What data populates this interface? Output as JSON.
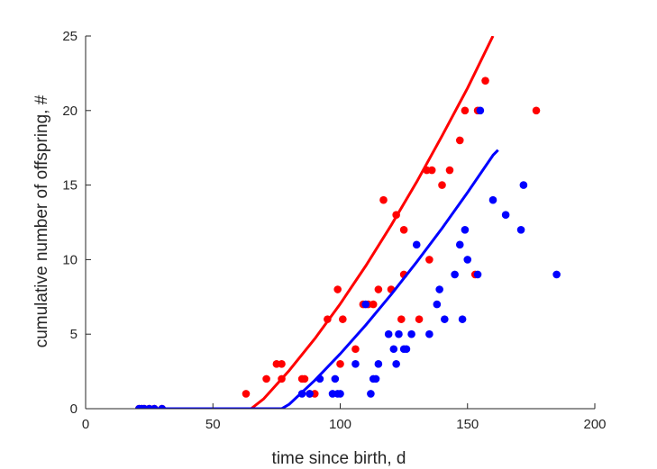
{
  "chart_data": {
    "type": "scatter",
    "title": "",
    "xlabel": "time since birth, d",
    "ylabel": "cumulative number of offspring, #",
    "xlim": [
      0,
      200
    ],
    "ylim": [
      0,
      25
    ],
    "xticks": [
      0,
      50,
      100,
      150,
      200
    ],
    "yticks": [
      0,
      5,
      10,
      15,
      20,
      25
    ],
    "grid": false,
    "box": "left-bottom axes only",
    "series": [
      {
        "color": "#ff0000",
        "points": [
          [
            21,
            0
          ],
          [
            22,
            0
          ],
          [
            23,
            0
          ],
          [
            25,
            0
          ],
          [
            27,
            0
          ],
          [
            30,
            0
          ],
          [
            63,
            1
          ],
          [
            71,
            2
          ],
          [
            75,
            3
          ],
          [
            77,
            3
          ],
          [
            77,
            2
          ],
          [
            85,
            2
          ],
          [
            86,
            2
          ],
          [
            88,
            1
          ],
          [
            90,
            1
          ],
          [
            95,
            6
          ],
          [
            99,
            8
          ],
          [
            100,
            3
          ],
          [
            101,
            6
          ],
          [
            106,
            4
          ],
          [
            109,
            7
          ],
          [
            111,
            7
          ],
          [
            113,
            7
          ],
          [
            115,
            8
          ],
          [
            117,
            14
          ],
          [
            120,
            8
          ],
          [
            122,
            13
          ],
          [
            124,
            6
          ],
          [
            125,
            12
          ],
          [
            125,
            9
          ],
          [
            131,
            6
          ],
          [
            134,
            16
          ],
          [
            135,
            10
          ],
          [
            136,
            16
          ],
          [
            140,
            15
          ],
          [
            143,
            16
          ],
          [
            147,
            18
          ],
          [
            149,
            20
          ],
          [
            153,
            9
          ],
          [
            154,
            20
          ],
          [
            157,
            22
          ],
          [
            177,
            20
          ]
        ],
        "fit": [
          [
            20,
            0
          ],
          [
            65,
            0
          ],
          [
            70,
            0.67
          ],
          [
            80,
            2.57
          ],
          [
            90,
            4.69
          ],
          [
            100,
            7.03
          ],
          [
            110,
            9.57
          ],
          [
            120,
            12.3
          ],
          [
            130,
            15.2
          ],
          [
            140,
            18.3
          ],
          [
            150,
            21.5
          ],
          [
            160,
            25
          ]
        ]
      },
      {
        "color": "#0000ff",
        "points": [
          [
            21,
            0
          ],
          [
            22,
            0
          ],
          [
            23,
            0
          ],
          [
            25,
            0
          ],
          [
            27,
            0
          ],
          [
            30,
            0
          ],
          [
            85,
            1
          ],
          [
            88,
            1
          ],
          [
            92,
            2
          ],
          [
            97,
            1
          ],
          [
            98,
            2
          ],
          [
            99,
            1
          ],
          [
            100,
            1
          ],
          [
            106,
            3
          ],
          [
            110,
            7
          ],
          [
            112,
            1
          ],
          [
            113,
            2
          ],
          [
            114,
            2
          ],
          [
            115,
            3
          ],
          [
            119,
            5
          ],
          [
            121,
            4
          ],
          [
            122,
            3
          ],
          [
            123,
            5
          ],
          [
            125,
            4
          ],
          [
            126,
            4
          ],
          [
            128,
            5
          ],
          [
            130,
            11
          ],
          [
            135,
            5
          ],
          [
            138,
            7
          ],
          [
            139,
            8
          ],
          [
            141,
            6
          ],
          [
            145,
            9
          ],
          [
            147,
            11
          ],
          [
            148,
            6
          ],
          [
            149,
            12
          ],
          [
            150,
            10
          ],
          [
            154,
            9
          ],
          [
            155,
            20
          ],
          [
            160,
            14
          ],
          [
            165,
            13
          ],
          [
            171,
            12
          ],
          [
            172,
            15
          ],
          [
            185,
            9
          ]
        ],
        "fit": [
          [
            20,
            0
          ],
          [
            77,
            0
          ],
          [
            80,
            0.3
          ],
          [
            90,
            1.9
          ],
          [
            100,
            3.68
          ],
          [
            110,
            5.6
          ],
          [
            120,
            7.66
          ],
          [
            130,
            9.83
          ],
          [
            140,
            12.1
          ],
          [
            150,
            14.5
          ],
          [
            160,
            17
          ],
          [
            162,
            17.35
          ]
        ]
      }
    ]
  }
}
